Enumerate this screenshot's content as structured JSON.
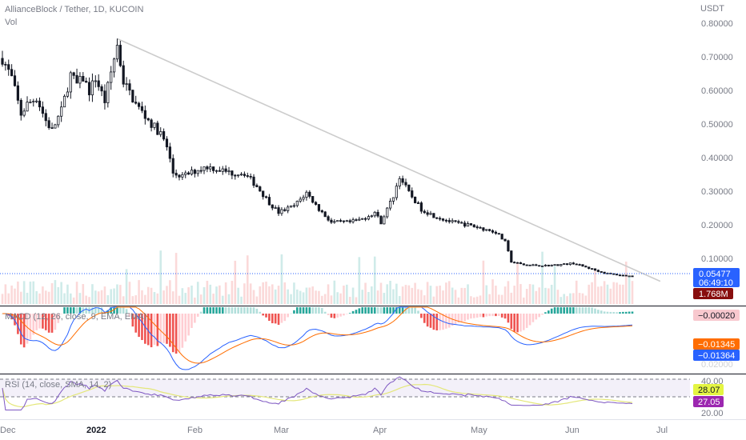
{
  "header": {
    "symbol_title": "AllianceBlock / Tether, 1D, KUCOIN",
    "volume_label": "Vol",
    "currency": "USDT"
  },
  "price_axis": {
    "ticks": [
      "0.80000",
      "0.70000",
      "0.60000",
      "0.50000",
      "0.40000",
      "0.30000",
      "0.20000",
      "0.10000"
    ]
  },
  "price_tags": {
    "last_price": "0.05477",
    "countdown": "06:49:10",
    "volume": "1.768M"
  },
  "macd": {
    "label": "MACD (12, 26, close, 9, EMA, EMA)",
    "hist_value": "−0.00020",
    "signal_value": "−0.01345",
    "macd_value": "−0.01364",
    "hidden_tick": "0.02000"
  },
  "rsi": {
    "label": "RSI (14, close, SMA, 14, 2)",
    "tick_top": "40.00",
    "tick_bottom": "20.00",
    "sma_value": "28.07",
    "rsi_value": "27.05"
  },
  "time_axis": {
    "labels": [
      "Dec",
      "2022",
      "Feb",
      "Mar",
      "Apr",
      "May",
      "Jun",
      "Jul"
    ]
  },
  "colors": {
    "up": "#26a69a",
    "down": "#ef5350",
    "candle": "#131722",
    "trendline": "#cccccc",
    "macd_line": "#2962ff",
    "signal_line": "#ff6d00",
    "rsi_line": "#7e57c2",
    "rsi_sma": "#e4e77a",
    "volume_tag": "#880e0e",
    "price_tag": "#2962ff"
  },
  "chart_data": {
    "type": "candlestick",
    "pair": "AllianceBlock / Tether",
    "timeframe": "1D",
    "exchange": "KUCOIN",
    "start_date": "2021-11-30",
    "end_date": "2022-06-21",
    "ylim": [
      0.0,
      0.82
    ],
    "price_path": [
      [
        "2021-11-30",
        0.72
      ],
      [
        "2021-12-03",
        0.66
      ],
      [
        "2021-12-06",
        0.55
      ],
      [
        "2021-12-08",
        0.58
      ],
      [
        "2021-12-11",
        0.6
      ],
      [
        "2021-12-14",
        0.53
      ],
      [
        "2021-12-16",
        0.5
      ],
      [
        "2021-12-19",
        0.56
      ],
      [
        "2021-12-22",
        0.67
      ],
      [
        "2021-12-24",
        0.64
      ],
      [
        "2021-12-26",
        0.66
      ],
      [
        "2021-12-28",
        0.62
      ],
      [
        "2021-12-30",
        0.66
      ],
      [
        "2022-01-02",
        0.59
      ],
      [
        "2022-01-05",
        0.72
      ],
      [
        "2022-01-06",
        0.76
      ],
      [
        "2022-01-08",
        0.65
      ],
      [
        "2022-01-12",
        0.58
      ],
      [
        "2022-01-17",
        0.52
      ],
      [
        "2022-01-20",
        0.49
      ],
      [
        "2022-01-22",
        0.45
      ],
      [
        "2022-01-24",
        0.37
      ],
      [
        "2022-01-27",
        0.36
      ],
      [
        "2022-02-01",
        0.38
      ],
      [
        "2022-02-04",
        0.39
      ],
      [
        "2022-02-08",
        0.38
      ],
      [
        "2022-02-12",
        0.37
      ],
      [
        "2022-02-16",
        0.37
      ],
      [
        "2022-02-20",
        0.33
      ],
      [
        "2022-02-24",
        0.28
      ],
      [
        "2022-02-27",
        0.25
      ],
      [
        "2022-03-04",
        0.27
      ],
      [
        "2022-03-08",
        0.31
      ],
      [
        "2022-03-12",
        0.26
      ],
      [
        "2022-03-16",
        0.22
      ],
      [
        "2022-03-22",
        0.22
      ],
      [
        "2022-03-26",
        0.23
      ],
      [
        "2022-03-30",
        0.25
      ],
      [
        "2022-04-01",
        0.22
      ],
      [
        "2022-04-05",
        0.3
      ],
      [
        "2022-04-07",
        0.36
      ],
      [
        "2022-04-10",
        0.31
      ],
      [
        "2022-04-14",
        0.26
      ],
      [
        "2022-04-18",
        0.24
      ],
      [
        "2022-04-24",
        0.22
      ],
      [
        "2022-04-30",
        0.21
      ],
      [
        "2022-05-04",
        0.2
      ],
      [
        "2022-05-08",
        0.19
      ],
      [
        "2022-05-11",
        0.16
      ],
      [
        "2022-05-13",
        0.1
      ],
      [
        "2022-05-17",
        0.09
      ],
      [
        "2022-05-24",
        0.088
      ],
      [
        "2022-05-28",
        0.09
      ],
      [
        "2022-06-02",
        0.095
      ],
      [
        "2022-06-07",
        0.08
      ],
      [
        "2022-06-12",
        0.065
      ],
      [
        "2022-06-16",
        0.06
      ],
      [
        "2022-06-21",
        0.055
      ]
    ],
    "trendline": [
      [
        "2022-01-06",
        0.78
      ],
      [
        "2022-06-30",
        0.04
      ]
    ],
    "last_price": 0.05477,
    "last_volume": "1.768M",
    "macd": {
      "macd": -0.01364,
      "signal": -0.01345,
      "histogram": -0.0002
    },
    "rsi": {
      "rsi": 27.05,
      "sma": 28.07,
      "band": [
        30,
        70
      ]
    }
  }
}
